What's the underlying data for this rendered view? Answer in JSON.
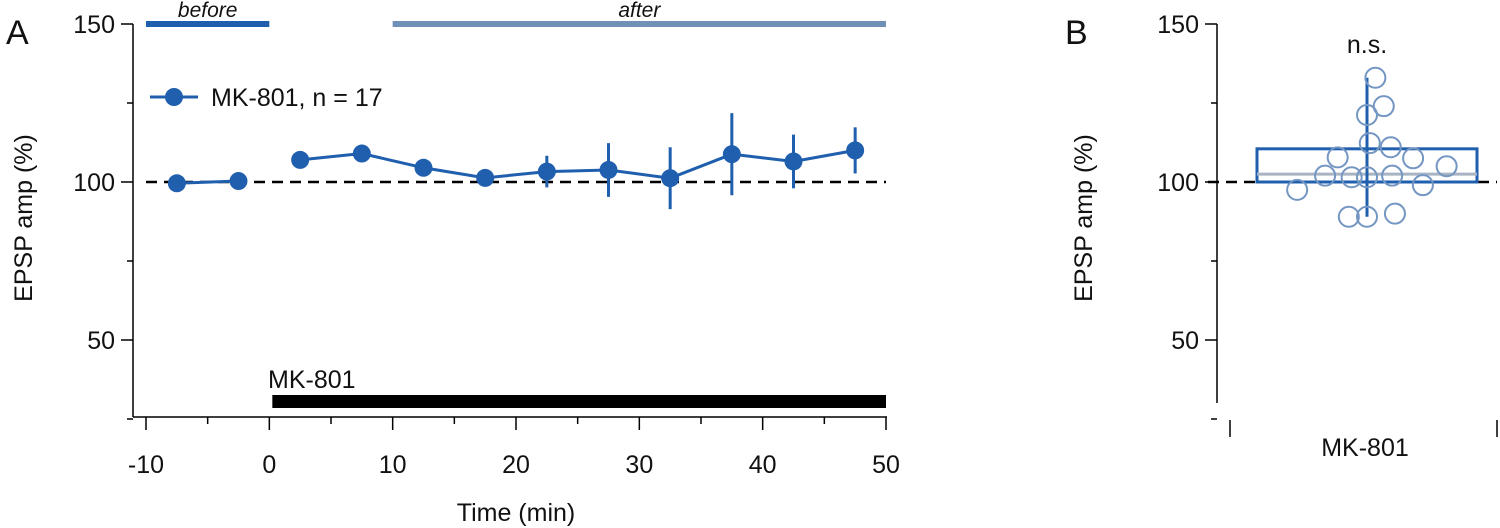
{
  "panel_labels": {
    "a": "A",
    "b": "B"
  },
  "colors": {
    "series": "#1f5fae",
    "after_bar": "#7090b8",
    "scatter_open": "#7496c2",
    "median": "#a8b4c4",
    "drug_bar": "#000000",
    "baseline": "#000000"
  },
  "chart_data": [
    {
      "type": "line",
      "panel": "A",
      "title": "",
      "xlabel": "Time (min)",
      "ylabel": "EPSP amp (%)",
      "xlim": [
        -12.5,
        50
      ],
      "ylim": [
        27,
        152
      ],
      "x_ticks": [
        -10,
        0,
        10,
        20,
        30,
        40,
        50
      ],
      "x_tick_labels": [
        "-10",
        "0",
        "10",
        "20",
        "30",
        "40",
        "50"
      ],
      "x_minor_ticks": [
        -5,
        5,
        15,
        25,
        35,
        45
      ],
      "y_ticks": [
        50,
        100,
        150
      ],
      "y_tick_labels": [
        "50",
        "100",
        "150"
      ],
      "y_minor_ticks": [
        25,
        75,
        125
      ],
      "baseline": 100,
      "legend": {
        "label": "MK-801, n = 17",
        "placement": "top-left"
      },
      "series": [
        {
          "name": "MK-801, n = 17",
          "x": [
            -7.5,
            -2.5,
            2.5,
            7.5,
            12.5,
            17.5,
            22.5,
            27.5,
            32.5,
            37.5,
            42.5,
            47.5
          ],
          "y": [
            99.6,
            100.3,
            107,
            109,
            104.5,
            101.3,
            103.3,
            103.8,
            101.2,
            108.8,
            106.5,
            110
          ],
          "error": [
            0.5,
            0.6,
            1.6,
            1.8,
            2.0,
            1.3,
            5.0,
            8.5,
            9.8,
            13.0,
            8.5,
            7.3
          ]
        }
      ],
      "period_bars": [
        {
          "label": "before",
          "start": -10,
          "end": 0,
          "y": 150
        },
        {
          "label": "after",
          "start": 10,
          "end": 50,
          "y": 150
        }
      ],
      "drug_bar": {
        "label": "MK-801",
        "start": 0,
        "end": 50,
        "y": 30
      }
    },
    {
      "type": "scatter",
      "panel": "B",
      "title": "",
      "xlabel": "",
      "ylabel": "EPSP amp (%)",
      "ylim": [
        27,
        152
      ],
      "y_ticks": [
        50,
        100,
        150
      ],
      "y_tick_labels": [
        "50",
        "100",
        "150"
      ],
      "y_minor_ticks": [
        25,
        75,
        125
      ],
      "categories": [
        "MK-801"
      ],
      "baseline": 100,
      "annotation": "n.s.",
      "box": {
        "q1": 100,
        "median": 102.5,
        "q3": 110.5,
        "whisker_low": 89,
        "whisker_high": 133
      },
      "points": [
        {
          "offset": -0.5,
          "y": 97.5
        },
        {
          "offset": -0.3,
          "y": 102.0
        },
        {
          "offset": -0.21,
          "y": 107.8
        },
        {
          "offset": -0.11,
          "y": 101.5
        },
        {
          "offset": -0.13,
          "y": 89.0
        },
        {
          "offset": 0.0,
          "y": 89.0
        },
        {
          "offset": 0.0,
          "y": 101.5
        },
        {
          "offset": 0.02,
          "y": 112.3
        },
        {
          "offset": 0.0,
          "y": 121.2
        },
        {
          "offset": 0.06,
          "y": 133.0
        },
        {
          "offset": 0.12,
          "y": 124.0
        },
        {
          "offset": 0.17,
          "y": 111.0
        },
        {
          "offset": 0.18,
          "y": 102.0
        },
        {
          "offset": 0.2,
          "y": 90.0
        },
        {
          "offset": 0.33,
          "y": 107.5
        },
        {
          "offset": 0.4,
          "y": 99.0
        },
        {
          "offset": 0.57,
          "y": 105.0
        }
      ]
    }
  ]
}
